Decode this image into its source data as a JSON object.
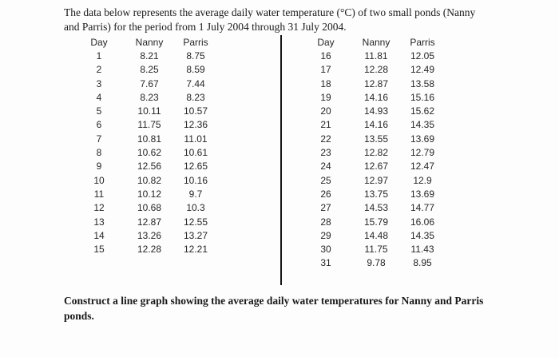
{
  "page": {
    "intro_lines": [
      "The data below represents the average daily water temperature (°C) of two small ponds (Nanny",
      "and Parris) for the period from 1 July 2004 through 31 July 2004."
    ],
    "instruction_lines": [
      "Construct a line graph showing the average daily water temperatures for Nanny and Parris",
      "ponds."
    ]
  },
  "table": {
    "headers": [
      "Day",
      "Nanny",
      "Parris"
    ],
    "left_rows": [
      [
        "1",
        "8.21",
        "8.75"
      ],
      [
        "2",
        "8.25",
        "8.59"
      ],
      [
        "3",
        "7.67",
        "7.44"
      ],
      [
        "4",
        "8.23",
        "8.23"
      ],
      [
        "5",
        "10.11",
        "10.57"
      ],
      [
        "6",
        "11.75",
        "12.36"
      ],
      [
        "7",
        "10.81",
        "11.01"
      ],
      [
        "8",
        "10.62",
        "10.61"
      ],
      [
        "9",
        "12.56",
        "12.65"
      ],
      [
        "10",
        "10.82",
        "10.16"
      ],
      [
        "11",
        "10.12",
        "9.7"
      ],
      [
        "12",
        "10.68",
        "10.3"
      ],
      [
        "13",
        "12.87",
        "12.55"
      ],
      [
        "14",
        "13.26",
        "13.27"
      ],
      [
        "15",
        "12.28",
        "12.21"
      ]
    ],
    "right_rows": [
      [
        "16",
        "11.81",
        "12.05"
      ],
      [
        "17",
        "12.28",
        "12.49"
      ],
      [
        "18",
        "12.87",
        "13.58"
      ],
      [
        "19",
        "14.16",
        "15.16"
      ],
      [
        "20",
        "14.93",
        "15.62"
      ],
      [
        "21",
        "14.16",
        "14.35"
      ],
      [
        "22",
        "13.55",
        "13.69"
      ],
      [
        "23",
        "12.82",
        "12.79"
      ],
      [
        "24",
        "12.67",
        "12.47"
      ],
      [
        "25",
        "12.97",
        "12.9"
      ],
      [
        "26",
        "13.75",
        "13.69"
      ],
      [
        "27",
        "14.53",
        "14.77"
      ],
      [
        "28",
        "15.79",
        "16.06"
      ],
      [
        "29",
        "14.48",
        "14.35"
      ],
      [
        "30",
        "11.75",
        "11.43"
      ],
      [
        "31",
        "9.78",
        "8.95"
      ]
    ]
  }
}
